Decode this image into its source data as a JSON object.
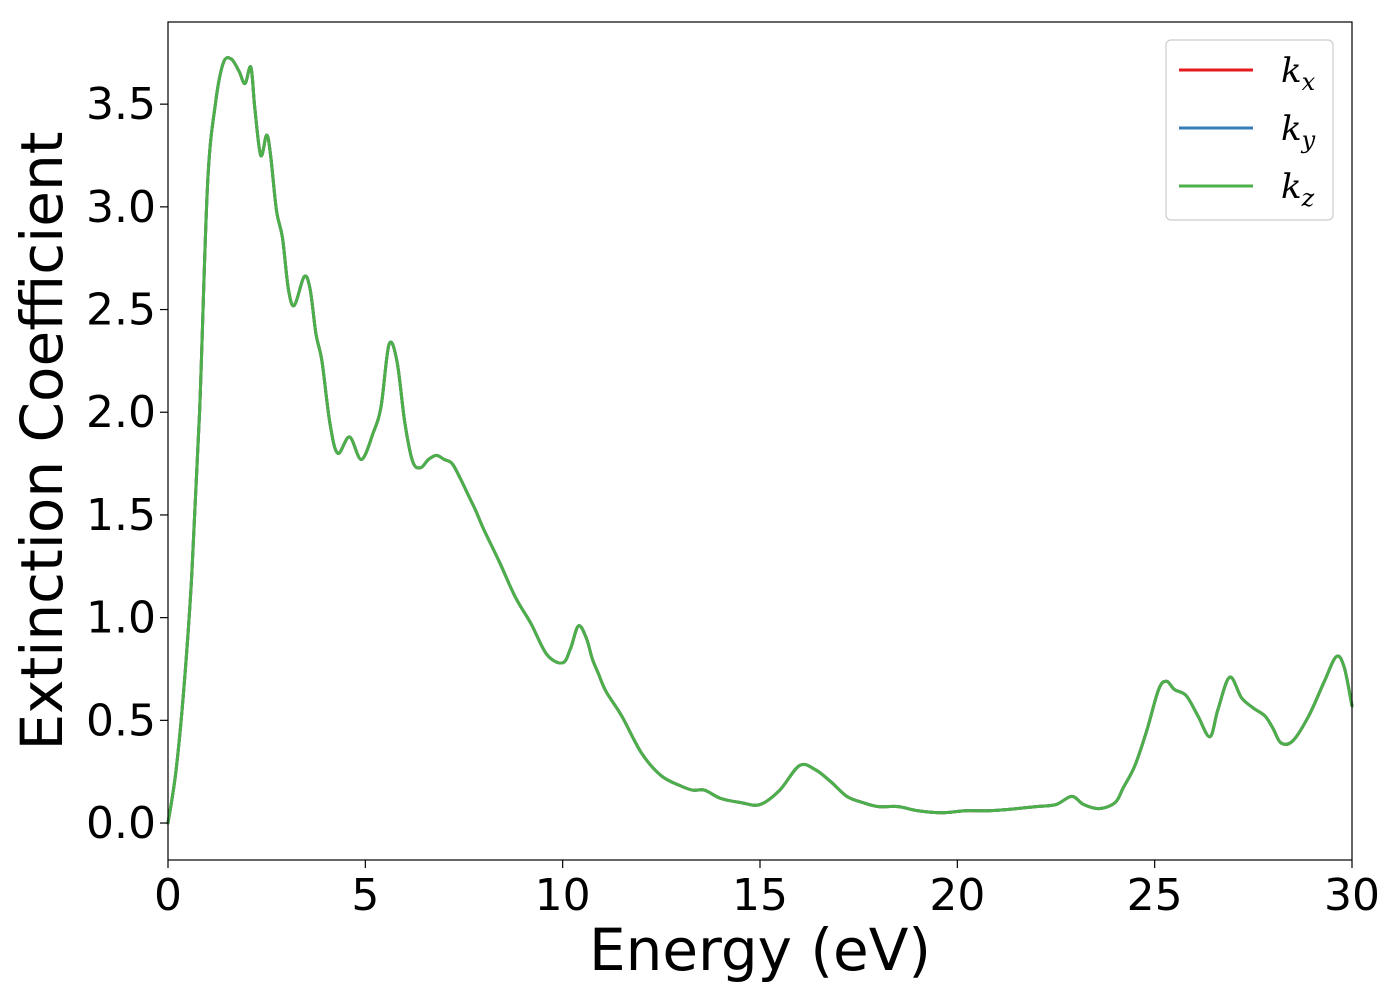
{
  "chart_data": {
    "type": "line",
    "xlabel": "Energy (eV)",
    "ylabel": "Extinction Coefficient",
    "xlim": [
      0,
      30
    ],
    "ylim": [
      -0.18,
      3.9
    ],
    "xticks": [
      0,
      5,
      10,
      15,
      20,
      25,
      30
    ],
    "xtick_labels": [
      "0",
      "5",
      "10",
      "15",
      "20",
      "25",
      "30"
    ],
    "yticks": [
      0.0,
      0.5,
      1.0,
      1.5,
      2.0,
      2.5,
      3.0,
      3.5
    ],
    "ytick_labels": [
      "0.0",
      "0.5",
      "1.0",
      "1.5",
      "2.0",
      "2.5",
      "3.0",
      "3.5"
    ],
    "grid": false,
    "legend_position": "top-right",
    "x": [
      0,
      0.2,
      0.4,
      0.6,
      0.8,
      1.0,
      1.2,
      1.4,
      1.6,
      1.8,
      1.95,
      2.1,
      2.2,
      2.35,
      2.5,
      2.6,
      2.75,
      2.9,
      3.05,
      3.2,
      3.45,
      3.6,
      3.75,
      3.9,
      4.1,
      4.3,
      4.6,
      4.9,
      5.2,
      5.4,
      5.6,
      5.8,
      6.0,
      6.2,
      6.4,
      6.6,
      6.8,
      7.0,
      7.2,
      7.4,
      7.6,
      7.8,
      8.0,
      8.4,
      8.8,
      9.2,
      9.6,
      10.0,
      10.2,
      10.4,
      10.6,
      10.75,
      10.9,
      11.1,
      11.5,
      12.0,
      12.5,
      13.0,
      13.3,
      13.6,
      14.0,
      14.5,
      15.0,
      15.5,
      16.0,
      16.4,
      16.8,
      17.2,
      17.6,
      18.0,
      18.5,
      19.0,
      19.6,
      20.2,
      20.8,
      21.5,
      22.0,
      22.5,
      22.9,
      23.2,
      23.6,
      24.0,
      24.2,
      24.5,
      24.8,
      25.1,
      25.3,
      25.5,
      25.8,
      26.1,
      26.4,
      26.6,
      26.9,
      27.2,
      27.5,
      27.8,
      28.0,
      28.2,
      28.5,
      28.9,
      29.3,
      29.6,
      29.8,
      30.0
    ],
    "series": [
      {
        "name": "k_x",
        "color": "#e41a1c",
        "values": [
          0.0,
          0.25,
          0.65,
          1.2,
          2.0,
          3.1,
          3.5,
          3.7,
          3.72,
          3.66,
          3.6,
          3.68,
          3.48,
          3.25,
          3.35,
          3.25,
          2.98,
          2.85,
          2.6,
          2.52,
          2.66,
          2.6,
          2.38,
          2.25,
          1.95,
          1.8,
          1.88,
          1.77,
          1.9,
          2.03,
          2.33,
          2.25,
          1.95,
          1.76,
          1.73,
          1.77,
          1.79,
          1.77,
          1.75,
          1.68,
          1.6,
          1.52,
          1.43,
          1.27,
          1.1,
          0.97,
          0.82,
          0.78,
          0.85,
          0.96,
          0.9,
          0.8,
          0.73,
          0.64,
          0.52,
          0.34,
          0.23,
          0.18,
          0.16,
          0.16,
          0.12,
          0.1,
          0.09,
          0.16,
          0.28,
          0.26,
          0.2,
          0.13,
          0.1,
          0.08,
          0.08,
          0.06,
          0.05,
          0.06,
          0.06,
          0.07,
          0.08,
          0.09,
          0.13,
          0.09,
          0.07,
          0.1,
          0.17,
          0.28,
          0.45,
          0.65,
          0.69,
          0.65,
          0.62,
          0.52,
          0.42,
          0.55,
          0.71,
          0.61,
          0.56,
          0.52,
          0.46,
          0.39,
          0.4,
          0.52,
          0.69,
          0.81,
          0.76,
          0.57
        ]
      },
      {
        "name": "k_y",
        "color": "#377eb8",
        "values": [
          0.0,
          0.25,
          0.65,
          1.2,
          2.0,
          3.1,
          3.5,
          3.7,
          3.72,
          3.66,
          3.6,
          3.68,
          3.48,
          3.25,
          3.35,
          3.25,
          2.98,
          2.85,
          2.6,
          2.52,
          2.66,
          2.6,
          2.38,
          2.25,
          1.95,
          1.8,
          1.88,
          1.77,
          1.9,
          2.03,
          2.33,
          2.25,
          1.95,
          1.76,
          1.73,
          1.77,
          1.79,
          1.77,
          1.75,
          1.68,
          1.6,
          1.52,
          1.43,
          1.27,
          1.1,
          0.97,
          0.82,
          0.78,
          0.85,
          0.96,
          0.9,
          0.8,
          0.73,
          0.64,
          0.52,
          0.34,
          0.23,
          0.18,
          0.16,
          0.16,
          0.12,
          0.1,
          0.09,
          0.16,
          0.28,
          0.26,
          0.2,
          0.13,
          0.1,
          0.08,
          0.08,
          0.06,
          0.05,
          0.06,
          0.06,
          0.07,
          0.08,
          0.09,
          0.13,
          0.09,
          0.07,
          0.1,
          0.17,
          0.28,
          0.45,
          0.65,
          0.69,
          0.65,
          0.62,
          0.52,
          0.42,
          0.55,
          0.71,
          0.61,
          0.56,
          0.52,
          0.46,
          0.39,
          0.4,
          0.52,
          0.69,
          0.81,
          0.76,
          0.57
        ]
      },
      {
        "name": "k_z",
        "color": "#4daf4a",
        "values": [
          0.0,
          0.25,
          0.65,
          1.2,
          2.0,
          3.1,
          3.5,
          3.7,
          3.72,
          3.66,
          3.6,
          3.68,
          3.48,
          3.25,
          3.35,
          3.25,
          2.98,
          2.85,
          2.6,
          2.52,
          2.66,
          2.6,
          2.38,
          2.25,
          1.95,
          1.8,
          1.88,
          1.77,
          1.9,
          2.03,
          2.33,
          2.25,
          1.95,
          1.76,
          1.73,
          1.77,
          1.79,
          1.77,
          1.75,
          1.68,
          1.6,
          1.52,
          1.43,
          1.27,
          1.1,
          0.97,
          0.82,
          0.78,
          0.85,
          0.96,
          0.9,
          0.8,
          0.73,
          0.64,
          0.52,
          0.34,
          0.23,
          0.18,
          0.16,
          0.16,
          0.12,
          0.1,
          0.09,
          0.16,
          0.28,
          0.26,
          0.2,
          0.13,
          0.1,
          0.08,
          0.08,
          0.06,
          0.05,
          0.06,
          0.06,
          0.07,
          0.08,
          0.09,
          0.13,
          0.09,
          0.07,
          0.1,
          0.17,
          0.28,
          0.45,
          0.65,
          0.69,
          0.65,
          0.62,
          0.52,
          0.42,
          0.55,
          0.71,
          0.61,
          0.56,
          0.52,
          0.46,
          0.39,
          0.4,
          0.52,
          0.69,
          0.81,
          0.76,
          0.57
        ]
      }
    ],
    "legend": [
      {
        "base": "k",
        "sub": "x",
        "color": "#e41a1c"
      },
      {
        "base": "k",
        "sub": "y",
        "color": "#377eb8"
      },
      {
        "base": "k",
        "sub": "z",
        "color": "#4daf4a"
      }
    ]
  }
}
